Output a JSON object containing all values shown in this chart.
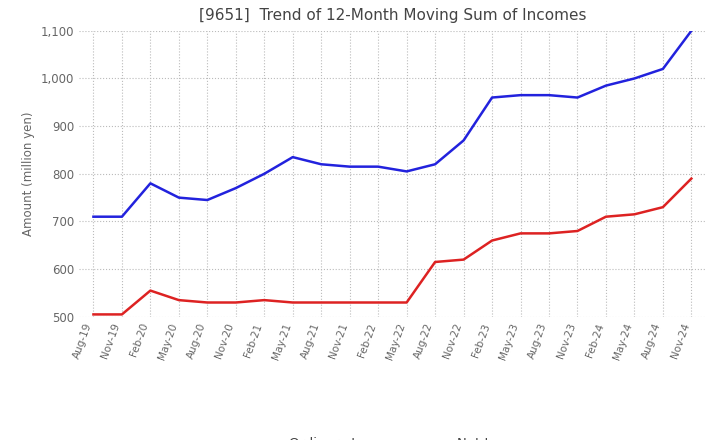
{
  "title": "[9651]  Trend of 12-Month Moving Sum of Incomes",
  "ylabel": "Amount (million yen)",
  "x_labels": [
    "Aug-19",
    "Nov-19",
    "Feb-20",
    "May-20",
    "Aug-20",
    "Nov-20",
    "Feb-21",
    "May-21",
    "Aug-21",
    "Nov-21",
    "Feb-22",
    "May-22",
    "Aug-22",
    "Nov-22",
    "Feb-23",
    "May-23",
    "Aug-23",
    "Nov-23",
    "Feb-24",
    "May-24",
    "Aug-24",
    "Nov-24"
  ],
  "ordinary_income": [
    710,
    710,
    780,
    750,
    745,
    770,
    800,
    835,
    820,
    815,
    815,
    805,
    820,
    870,
    960,
    965,
    965,
    960,
    985,
    1000,
    1020,
    1100
  ],
  "net_income": [
    505,
    505,
    555,
    535,
    530,
    530,
    535,
    530,
    530,
    530,
    530,
    530,
    615,
    620,
    660,
    675,
    675,
    680,
    710,
    715,
    730,
    790
  ],
  "ordinary_color": "#2222dd",
  "net_color": "#dd2222",
  "ylim_min": 500,
  "ylim_max": 1100,
  "yticks": [
    500,
    600,
    700,
    800,
    900,
    1000,
    1100
  ],
  "background_color": "#ffffff",
  "grid_color": "#bbbbbb",
  "title_color": "#444444",
  "tick_color": "#666666"
}
